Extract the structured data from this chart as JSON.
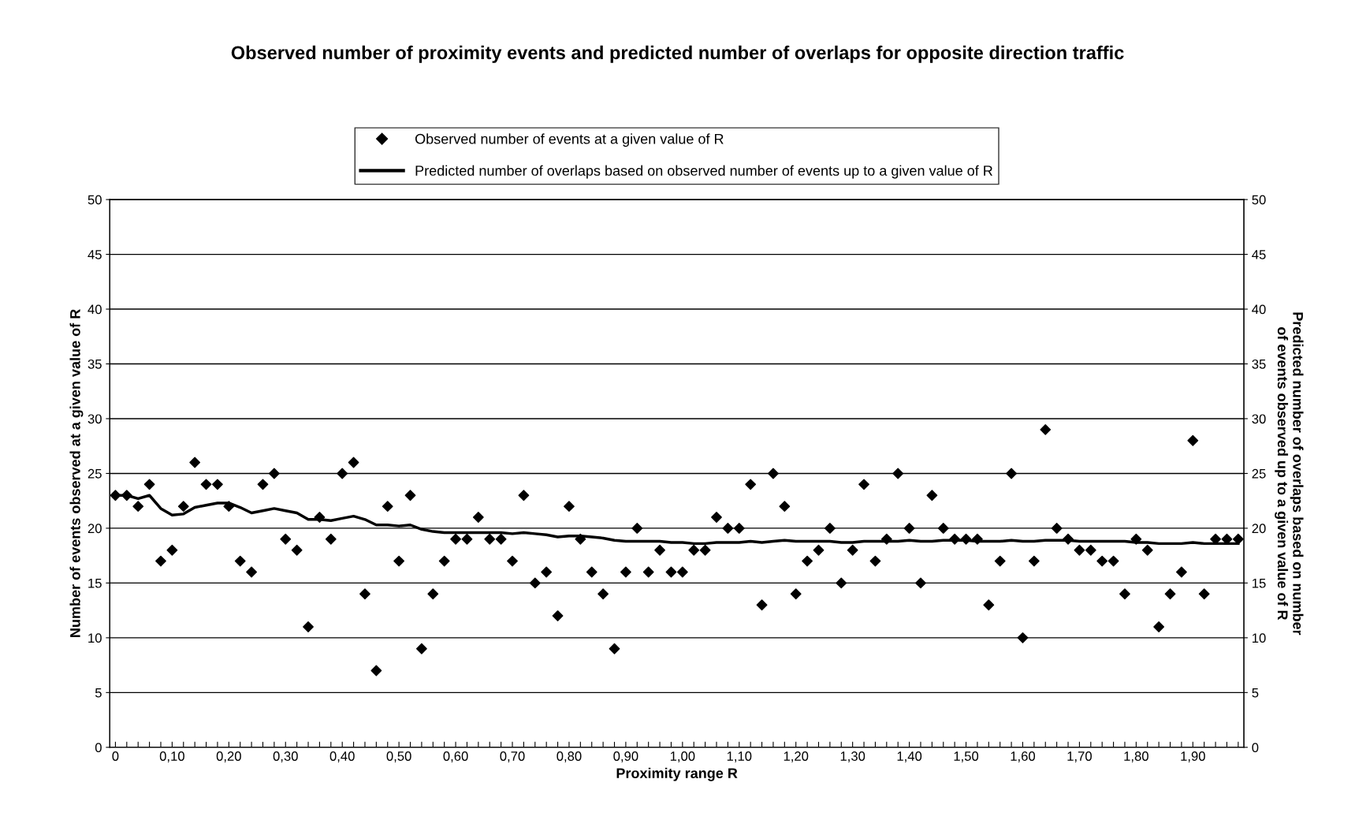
{
  "chart_data": {
    "type": "scatter",
    "title": "Observed number of proximity events and predicted number of overlaps for opposite direction traffic",
    "xlabel": "Proximity range R",
    "ylabel": "Number of events observed at a given value of R",
    "y2label": "Predicted number of overlaps based on number\nof events observed up to a given value of R",
    "categories": [
      "0",
      null,
      null,
      null,
      null,
      "0,10",
      null,
      null,
      null,
      null,
      "0,20",
      null,
      null,
      null,
      null,
      "0,30",
      null,
      null,
      null,
      null,
      "0,40",
      null,
      null,
      null,
      null,
      "0,50",
      null,
      null,
      null,
      null,
      "0,60",
      null,
      null,
      null,
      null,
      "0,70",
      null,
      null,
      null,
      null,
      "0,80",
      null,
      null,
      null,
      null,
      "0,90",
      null,
      null,
      null,
      null,
      "1,00",
      null,
      null,
      null,
      null,
      "1,10",
      null,
      null,
      null,
      null,
      "1,20",
      null,
      null,
      null,
      null,
      "1,30",
      null,
      null,
      null,
      null,
      "1,40",
      null,
      null,
      null,
      null,
      "1,50",
      null,
      null,
      null,
      null,
      "1,60",
      null,
      null,
      null,
      null,
      "1,70",
      null,
      null,
      null,
      null,
      "1,80",
      null,
      null,
      null,
      null,
      "1,90",
      null,
      null,
      null,
      null
    ],
    "series": [
      {
        "name": "Observed number of events at a given value of R",
        "color": "#000000",
        "marker": "diamond",
        "values": [
          23,
          23,
          22,
          24,
          17,
          18,
          22,
          26,
          24,
          24,
          22,
          17,
          16,
          24,
          25,
          19,
          18,
          11,
          21,
          19,
          25,
          26,
          14,
          7,
          22,
          17,
          23,
          9,
          14,
          17,
          19,
          19,
          21,
          19,
          19,
          17,
          23,
          15,
          16,
          12,
          22,
          19,
          16,
          14,
          9,
          16,
          20,
          16,
          18,
          16,
          16,
          18,
          18,
          21,
          20,
          20,
          24,
          13,
          25,
          22,
          14,
          17,
          18,
          20,
          15,
          18,
          24,
          17,
          19,
          25,
          20,
          15,
          23,
          20,
          19,
          19,
          19,
          13,
          17,
          25,
          10,
          17,
          29,
          20,
          19,
          18,
          18,
          17,
          17,
          14,
          19,
          18,
          11,
          14,
          16,
          28,
          14,
          19,
          19,
          19
        ]
      },
      {
        "name": "Predicted number of overlaps based on observed number of events up to a given value of R",
        "type": "line",
        "axis": "y2",
        "color": "#000000",
        "line_style": "solid",
        "values": [
          23,
          23,
          22.7,
          23,
          21.8,
          21.2,
          21.3,
          21.9,
          22.1,
          22.3,
          22.3,
          21.9,
          21.4,
          21.6,
          21.8,
          21.6,
          21.4,
          20.8,
          20.8,
          20.7,
          20.9,
          21.1,
          20.8,
          20.3,
          20.3,
          20.2,
          20.3,
          19.9,
          19.7,
          19.6,
          19.6,
          19.6,
          19.6,
          19.6,
          19.6,
          19.5,
          19.6,
          19.5,
          19.4,
          19.2,
          19.3,
          19.3,
          19.2,
          19.1,
          18.9,
          18.8,
          18.8,
          18.8,
          18.8,
          18.7,
          18.7,
          18.6,
          18.6,
          18.7,
          18.7,
          18.7,
          18.8,
          18.7,
          18.8,
          18.9,
          18.8,
          18.8,
          18.8,
          18.8,
          18.7,
          18.7,
          18.8,
          18.8,
          18.8,
          18.8,
          18.9,
          18.8,
          18.8,
          18.9,
          18.9,
          18.9,
          18.8,
          18.8,
          18.8,
          18.9,
          18.8,
          18.8,
          18.9,
          18.9,
          18.9,
          18.8,
          18.8,
          18.8,
          18.8,
          18.8,
          18.7,
          18.7,
          18.6,
          18.6,
          18.6,
          18.7,
          18.6,
          18.6,
          18.6,
          18.6
        ]
      }
    ],
    "ylim": [
      0,
      50
    ],
    "yticks": [
      0,
      5,
      10,
      15,
      20,
      25,
      30,
      35,
      40,
      45,
      50
    ],
    "y2lim": [
      0,
      50
    ],
    "y2ticks": [
      0,
      5,
      10,
      15,
      20,
      25,
      30,
      35,
      40,
      45,
      50
    ],
    "grid": "y",
    "legend": "top"
  }
}
